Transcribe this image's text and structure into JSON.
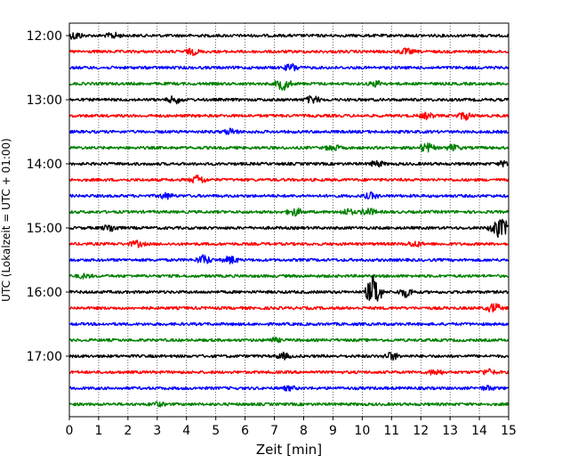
{
  "chart_data": {
    "type": "line",
    "xlabel": "Zeit  [min]",
    "ylabel": "UTC (Lokalzeit = UTC + 01:00)",
    "xlim": [
      0,
      15
    ],
    "x_ticks": [
      "0",
      "1",
      "2",
      "3",
      "4",
      "5",
      "6",
      "7",
      "8",
      "9",
      "10",
      "11",
      "12",
      "13",
      "14",
      "15"
    ],
    "y_ticks": [
      "12:00",
      "13:00",
      "14:00",
      "15:00",
      "16:00",
      "17:00"
    ],
    "vertical_grid": "dotted, every 1 min",
    "trace_interval_min": 15,
    "color_cycle": [
      "#000000",
      "#ff0000",
      "#0000ff",
      "#008000"
    ],
    "series": [
      {
        "start": "12:00",
        "color": "#000000",
        "events": [
          {
            "t": 0.2,
            "amp": 4
          },
          {
            "t": 1.5,
            "amp": 3
          }
        ]
      },
      {
        "start": "12:15",
        "color": "#ff0000",
        "events": [
          {
            "t": 4.2,
            "amp": 3
          },
          {
            "t": 11.5,
            "amp": 3
          }
        ]
      },
      {
        "start": "12:30",
        "color": "#0000ff",
        "events": [
          {
            "t": 7.6,
            "amp": 4
          }
        ]
      },
      {
        "start": "12:45",
        "color": "#008000",
        "events": [
          {
            "t": 7.3,
            "amp": 7
          },
          {
            "t": 10.5,
            "amp": 3
          }
        ]
      },
      {
        "start": "13:00",
        "color": "#000000",
        "events": [
          {
            "t": 3.6,
            "amp": 4
          },
          {
            "t": 8.3,
            "amp": 4
          }
        ]
      },
      {
        "start": "13:15",
        "color": "#ff0000",
        "events": [
          {
            "t": 12.2,
            "amp": 3
          },
          {
            "t": 13.5,
            "amp": 4
          }
        ]
      },
      {
        "start": "13:30",
        "color": "#0000ff",
        "events": [
          {
            "t": 5.5,
            "amp": 3
          }
        ]
      },
      {
        "start": "13:45",
        "color": "#008000",
        "events": [
          {
            "t": 9.0,
            "amp": 3
          },
          {
            "t": 12.2,
            "amp": 5
          },
          {
            "t": 13.1,
            "amp": 3
          }
        ]
      },
      {
        "start": "14:00",
        "color": "#000000",
        "events": [
          {
            "t": 10.5,
            "amp": 3
          },
          {
            "t": 14.9,
            "amp": 3
          }
        ]
      },
      {
        "start": "14:15",
        "color": "#ff0000",
        "events": [
          {
            "t": 4.4,
            "amp": 5
          }
        ]
      },
      {
        "start": "14:30",
        "color": "#0000ff",
        "events": [
          {
            "t": 3.3,
            "amp": 3
          },
          {
            "t": 10.3,
            "amp": 3
          }
        ]
      },
      {
        "start": "14:45",
        "color": "#008000",
        "events": [
          {
            "t": 7.7,
            "amp": 4
          },
          {
            "t": 9.5,
            "amp": 3
          },
          {
            "t": 10.2,
            "amp": 4
          }
        ]
      },
      {
        "start": "15:00",
        "color": "#000000",
        "events": [
          {
            "t": 1.4,
            "amp": 4
          },
          {
            "t": 14.6,
            "amp": 9
          },
          {
            "t": 14.9,
            "amp": 6
          }
        ]
      },
      {
        "start": "15:15",
        "color": "#ff0000",
        "events": [
          {
            "t": 2.3,
            "amp": 3
          },
          {
            "t": 11.8,
            "amp": 3
          }
        ]
      },
      {
        "start": "15:30",
        "color": "#0000ff",
        "events": [
          {
            "t": 4.6,
            "amp": 5
          },
          {
            "t": 5.5,
            "amp": 4
          }
        ]
      },
      {
        "start": "15:45",
        "color": "#008000",
        "events": [
          {
            "t": 0.5,
            "amp": 2
          }
        ]
      },
      {
        "start": "16:00",
        "color": "#000000",
        "events": [
          {
            "t": 10.4,
            "amp": 20
          },
          {
            "t": 11.5,
            "amp": 5
          }
        ]
      },
      {
        "start": "16:15",
        "color": "#ff0000",
        "events": [
          {
            "t": 14.5,
            "amp": 5
          }
        ]
      },
      {
        "start": "16:30",
        "color": "#0000ff",
        "events": []
      },
      {
        "start": "16:45",
        "color": "#008000",
        "events": [
          {
            "t": 7.0,
            "amp": 2
          }
        ]
      },
      {
        "start": "17:00",
        "color": "#000000",
        "events": [
          {
            "t": 7.3,
            "amp": 3
          },
          {
            "t": 11.0,
            "amp": 4
          }
        ]
      },
      {
        "start": "17:15",
        "color": "#ff0000",
        "events": [
          {
            "t": 12.5,
            "amp": 3
          },
          {
            "t": 14.3,
            "amp": 3
          }
        ]
      },
      {
        "start": "17:30",
        "color": "#0000ff",
        "events": [
          {
            "t": 7.5,
            "amp": 2
          },
          {
            "t": 14.3,
            "amp": 2
          }
        ]
      },
      {
        "start": "17:45",
        "color": "#008000",
        "events": [
          {
            "t": 3.0,
            "amp": 2
          }
        ]
      }
    ]
  }
}
